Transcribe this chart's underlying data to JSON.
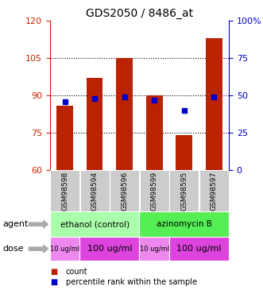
{
  "title": "GDS2050 / 8486_at",
  "samples": [
    "GSM98598",
    "GSM98594",
    "GSM98596",
    "GSM98599",
    "GSM98595",
    "GSM98597"
  ],
  "bar_values": [
    86,
    97,
    105,
    90,
    74,
    113
  ],
  "blue_dot_values": [
    46,
    48,
    49,
    47,
    40,
    49
  ],
  "ylim_left": [
    60,
    120
  ],
  "ylim_right": [
    0,
    100
  ],
  "yticks_left": [
    60,
    75,
    90,
    105,
    120
  ],
  "yticks_right": [
    0,
    25,
    50,
    75,
    100
  ],
  "bar_color": "#bb2200",
  "dot_color": "#0000cc",
  "bar_bottom": 60,
  "agent_groups": [
    {
      "label": "ethanol (control)",
      "color": "#aaffaa",
      "span": [
        0,
        3
      ]
    },
    {
      "label": "azinomycin B",
      "color": "#55ee55",
      "span": [
        3,
        6
      ]
    }
  ],
  "dose_groups": [
    {
      "label": "10 ug/ml",
      "color": "#ee88ee",
      "span": [
        0,
        1
      ],
      "fontsize": 6
    },
    {
      "label": "100 ug/ml",
      "color": "#dd44dd",
      "span": [
        1,
        3
      ],
      "fontsize": 8
    },
    {
      "label": "10 ug/ml",
      "color": "#ee88ee",
      "span": [
        3,
        4
      ],
      "fontsize": 6
    },
    {
      "label": "100 ug/ml",
      "color": "#dd44dd",
      "span": [
        4,
        6
      ],
      "fontsize": 8
    }
  ],
  "legend_count_color": "#bb2200",
  "legend_dot_color": "#0000cc",
  "background_color": "#ffffff",
  "left_axis_color": "#cc2200",
  "right_axis_color": "#0000cc",
  "sample_bg_color": "#cccccc"
}
